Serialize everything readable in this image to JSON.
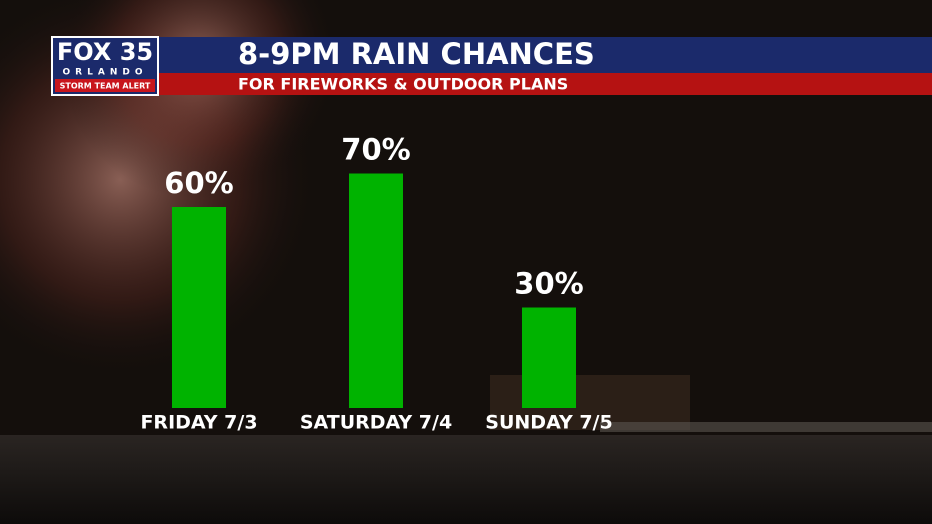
{
  "branding": {
    "station": "FOX 35",
    "city": "ORLANDO",
    "alert": "STORM TEAM ALERT"
  },
  "chart_data": {
    "type": "bar",
    "title": "8-9PM RAIN CHANCES",
    "subtitle": "FOR FIREWORKS & OUTDOOR PLANS",
    "categories": [
      "FRIDAY 7/3",
      "SATURDAY 7/4",
      "SUNDAY 7/5"
    ],
    "values": [
      60,
      70,
      30
    ],
    "value_labels": [
      "60%",
      "70%",
      "30%"
    ],
    "color": "#00b300"
  }
}
